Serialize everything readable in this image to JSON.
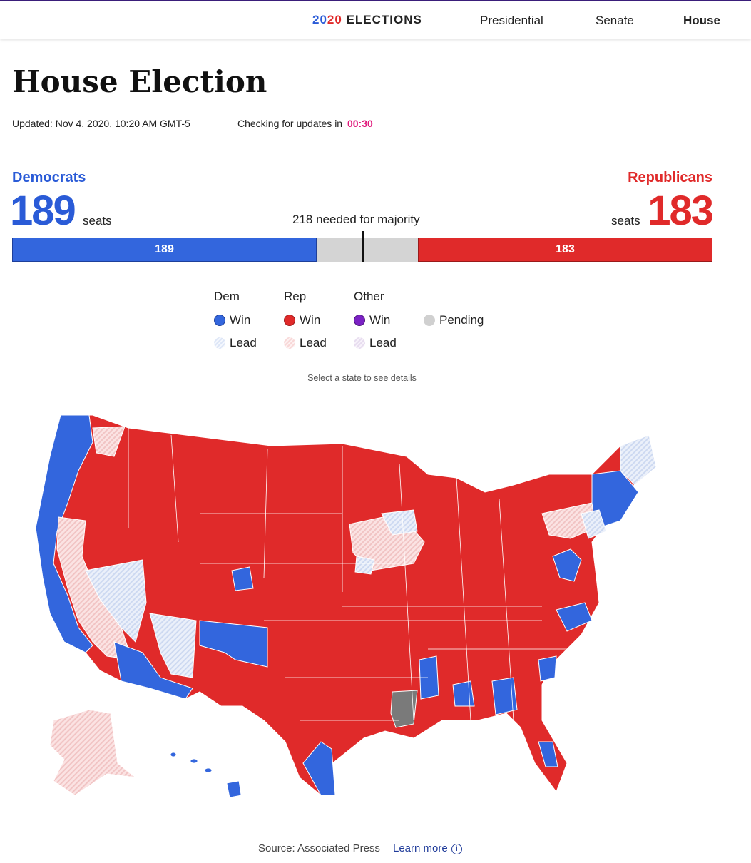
{
  "nav": {
    "brand_year_a": "20",
    "brand_year_b": "20",
    "brand_rest": "ELECTIONS",
    "items": [
      {
        "label": "Presidential",
        "active": false
      },
      {
        "label": "Senate",
        "active": false
      },
      {
        "label": "House",
        "active": true
      }
    ]
  },
  "header": {
    "title": "House Election",
    "updated": "Updated: Nov 4, 2020, 10:20 AM GMT-5",
    "checking_label": "Checking for updates in",
    "countdown": "00:30"
  },
  "tally": {
    "dem_label": "Democrats",
    "dem_seats": "189",
    "rep_label": "Republicans",
    "rep_seats": "183",
    "seats_word": "seats",
    "majority_text": "218 needed for majority",
    "total_seats": 435,
    "majority": 218
  },
  "legend": {
    "headers": [
      "Dem",
      "Rep",
      "Other"
    ],
    "win": "Win",
    "lead": "Lead",
    "pending": "Pending"
  },
  "hint": "Select a state to see details",
  "footer": {
    "source": "Source: Associated Press",
    "learn_more": "Learn more"
  },
  "colors": {
    "dem": "#3366dd",
    "rep": "#e02a2a",
    "other": "#7b22c4",
    "pending": "#d0d0d0",
    "dem_lead": "#dde6f7",
    "rep_lead": "#f8d7d7",
    "other_lead": "#e7dcef",
    "countdown": "#e0177a"
  },
  "icons": {
    "info": "info-icon"
  }
}
